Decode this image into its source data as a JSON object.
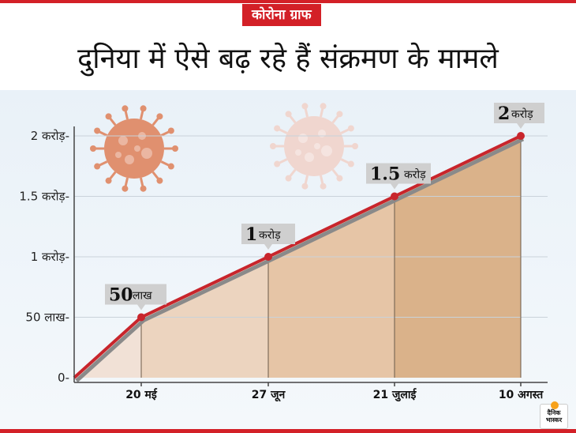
{
  "header": {
    "tag": "कोरोना ग्राफ",
    "title": "दुनिया में ऐसे बढ़ रहे हैं संक्रमण के मामले"
  },
  "logo": {
    "line1": "दैनिक",
    "line2": "भास्कर"
  },
  "colors": {
    "accent": "#d32027",
    "line": "#c8252c",
    "shadow": "#8a8a8a",
    "fills": [
      "#f1e1d6",
      "#ecd4bf",
      "#e6c5a6",
      "#dab28a"
    ],
    "virus_dark": "#e0906f",
    "virus_light": "#f0d6cf"
  },
  "icons": [
    "coronavirus-icon",
    "coronavirus-faded-icon"
  ],
  "chart_data": {
    "type": "area",
    "title": "दुनिया में ऐसे बढ़ रहे हैं संक्रमण के मामले",
    "xlabel": "",
    "ylabel": "",
    "ylim": [
      0,
      20000000
    ],
    "grid": true,
    "y_ticks": [
      {
        "value": 0,
        "label": "0-"
      },
      {
        "value": 5000000,
        "label": "50 लाख-"
      },
      {
        "value": 10000000,
        "label": "1 करोड़-"
      },
      {
        "value": 15000000,
        "label": "1.5 करोड़-"
      },
      {
        "value": 20000000,
        "label": "2 करोड़-"
      }
    ],
    "x_labels": [
      "20 मई",
      "27 जून",
      "21 जुलाई",
      "10 अगस्त"
    ],
    "series": [
      {
        "points": [
          {
            "x": "",
            "y": 0
          },
          {
            "x": "20 मई",
            "y": 5000000
          },
          {
            "x": "27 जून",
            "y": 10000000
          },
          {
            "x": "21 जुलाई",
            "y": 15000000
          },
          {
            "x": "10 अगस्त",
            "y": 20000000
          }
        ]
      }
    ],
    "data_labels": [
      {
        "x": "20 मई",
        "num": "50",
        "unit": "लाख"
      },
      {
        "x": "27 जून",
        "num": "1",
        "unit": "करोड़"
      },
      {
        "x": "21 जुलाई",
        "num": "1.5",
        "unit": "करोड़"
      },
      {
        "x": "10 अगस्त",
        "num": "2",
        "unit": "करोड़"
      }
    ]
  }
}
